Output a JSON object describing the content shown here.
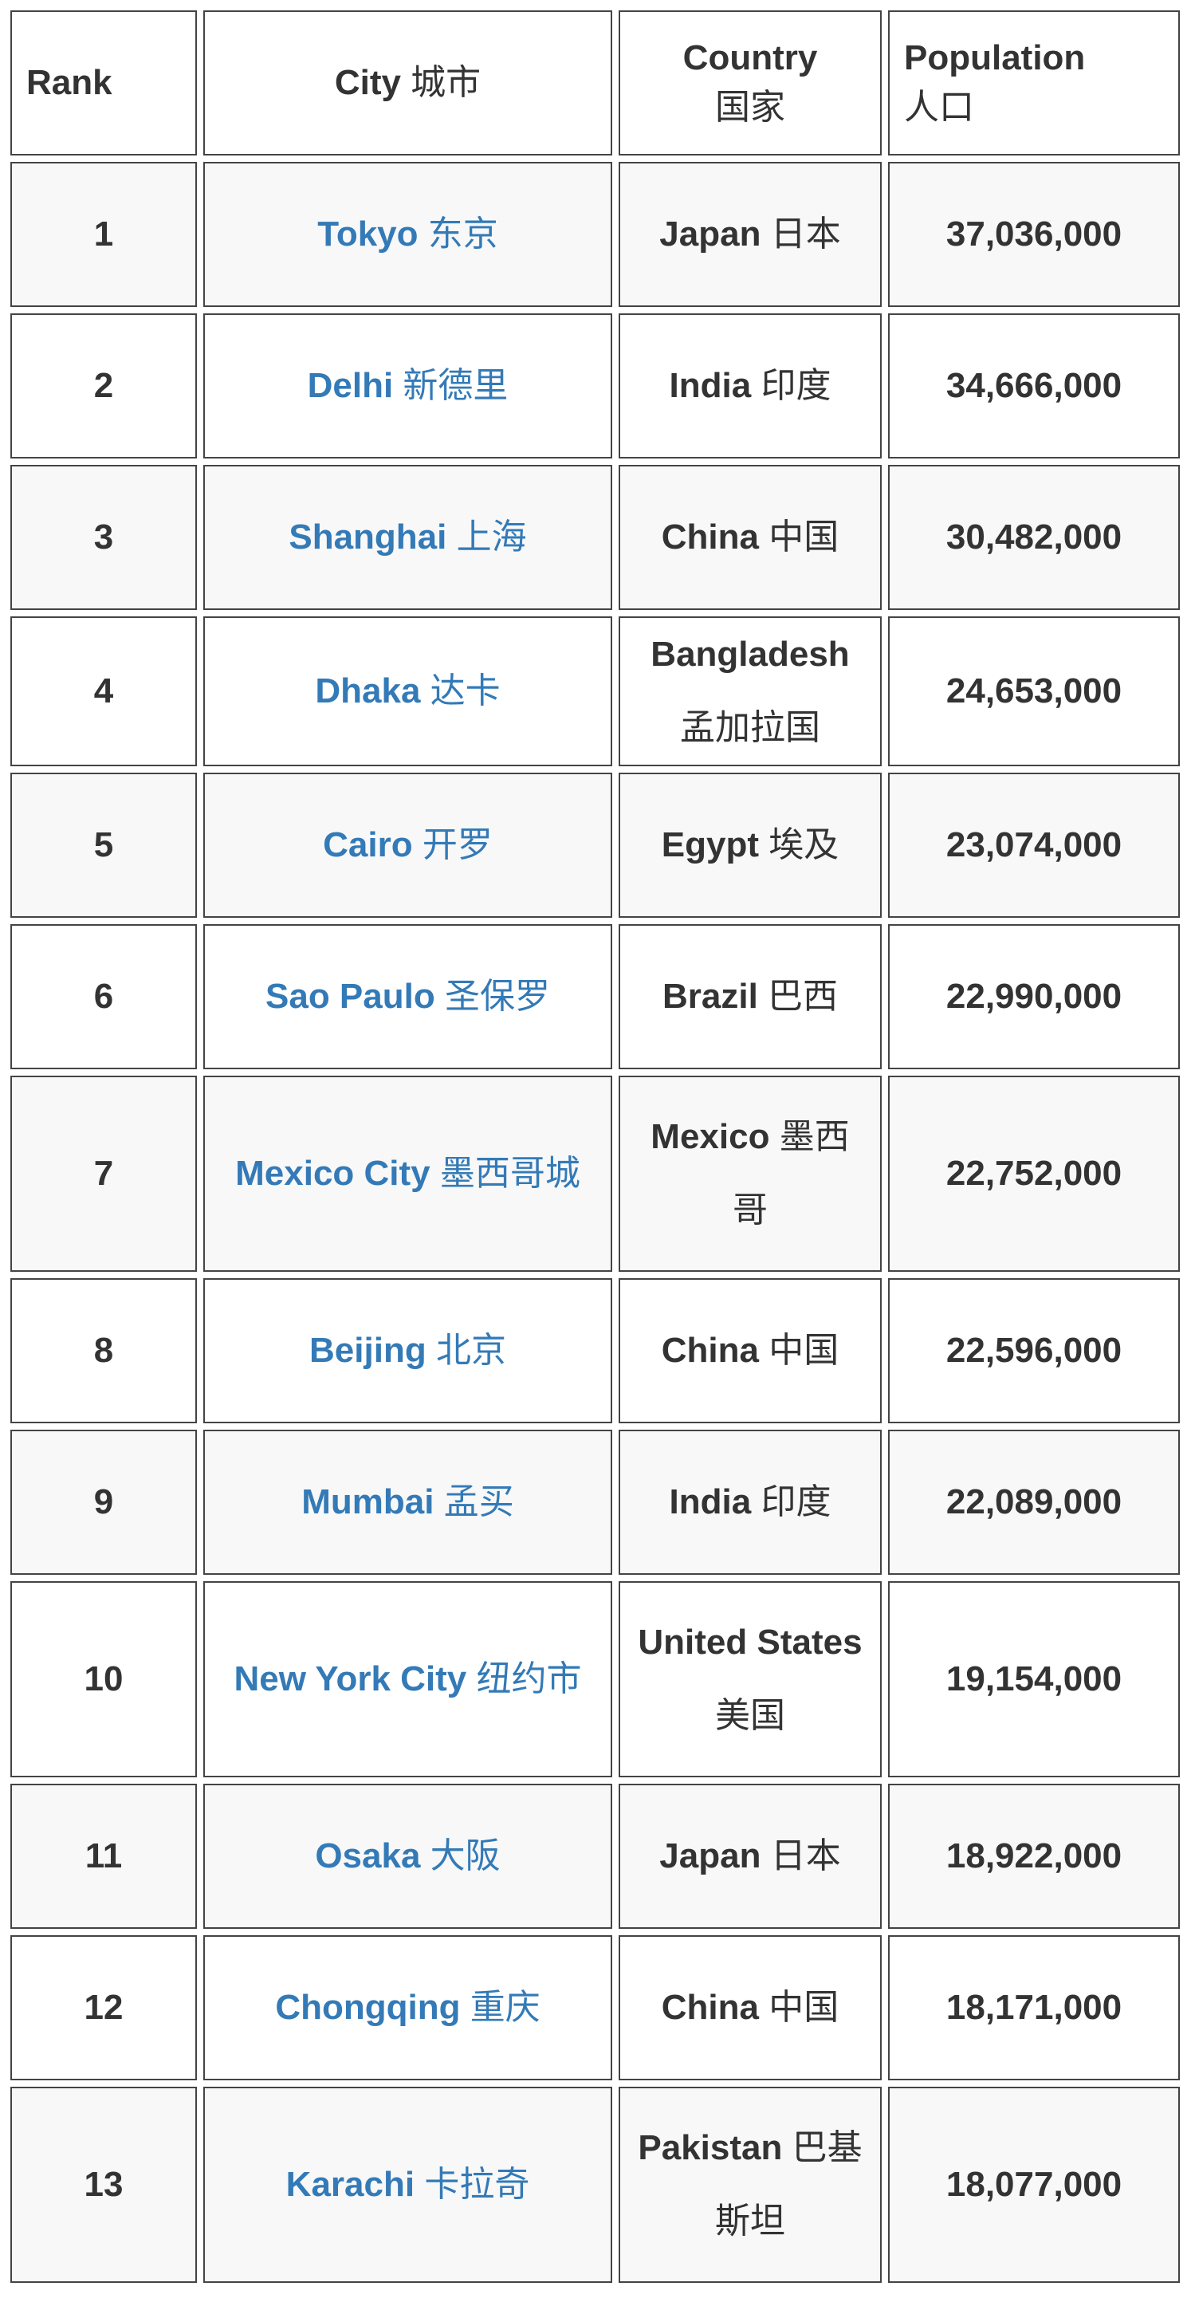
{
  "table": {
    "header": [
      {
        "en": "Rank"
      },
      {
        "en": "City",
        "zh": "城市"
      },
      {
        "en": "Country",
        "zh": "国家"
      },
      {
        "en": "Population",
        "zh": "人口"
      }
    ],
    "rows": [
      {
        "rank": "1",
        "city_en": "Tokyo",
        "city_zh": "东京",
        "country_en": "Japan",
        "country_zh": "日本",
        "population": "37,036,000"
      },
      {
        "rank": "2",
        "city_en": "Delhi",
        "city_zh": "新德里",
        "country_en": "India",
        "country_zh": "印度",
        "population": "34,666,000"
      },
      {
        "rank": "3",
        "city_en": "Shanghai",
        "city_zh": "上海",
        "country_en": "China",
        "country_zh": "中国",
        "population": "30,482,000"
      },
      {
        "rank": "4",
        "city_en": "Dhaka",
        "city_zh": "达卡",
        "country_en": "Bangladesh",
        "country_zh": "孟加拉国",
        "population": "24,653,000"
      },
      {
        "rank": "5",
        "city_en": "Cairo",
        "city_zh": "开罗",
        "country_en": "Egypt",
        "country_zh": "埃及",
        "population": "23,074,000"
      },
      {
        "rank": "6",
        "city_en": "Sao Paulo",
        "city_zh": "圣保罗",
        "country_en": "Brazil",
        "country_zh": "巴西",
        "population": "22,990,000"
      },
      {
        "rank": "7",
        "city_en": "Mexico City",
        "city_zh": "墨西哥城",
        "country_en": "Mexico",
        "country_zh": "墨西哥",
        "population": "22,752,000"
      },
      {
        "rank": "8",
        "city_en": "Beijing",
        "city_zh": "北京",
        "country_en": "China",
        "country_zh": "中国",
        "population": "22,596,000"
      },
      {
        "rank": "9",
        "city_en": "Mumbai",
        "city_zh": "孟买",
        "country_en": "India",
        "country_zh": "印度",
        "population": "22,089,000"
      },
      {
        "rank": "10",
        "city_en": "New York City",
        "city_zh": "纽约市",
        "country_en": "United States",
        "country_zh": "美国",
        "population": "19,154,000"
      },
      {
        "rank": "11",
        "city_en": "Osaka",
        "city_zh": "大阪",
        "country_en": "Japan",
        "country_zh": "日本",
        "population": "18,922,000"
      },
      {
        "rank": "12",
        "city_en": "Chongqing",
        "city_zh": "重庆",
        "country_en": "China",
        "country_zh": "中国",
        "population": "18,171,000"
      },
      {
        "rank": "13",
        "city_en": "Karachi",
        "city_zh": "卡拉奇",
        "country_en": "Pakistan",
        "country_zh": "巴基斯坦",
        "population": "18,077,000"
      }
    ]
  }
}
